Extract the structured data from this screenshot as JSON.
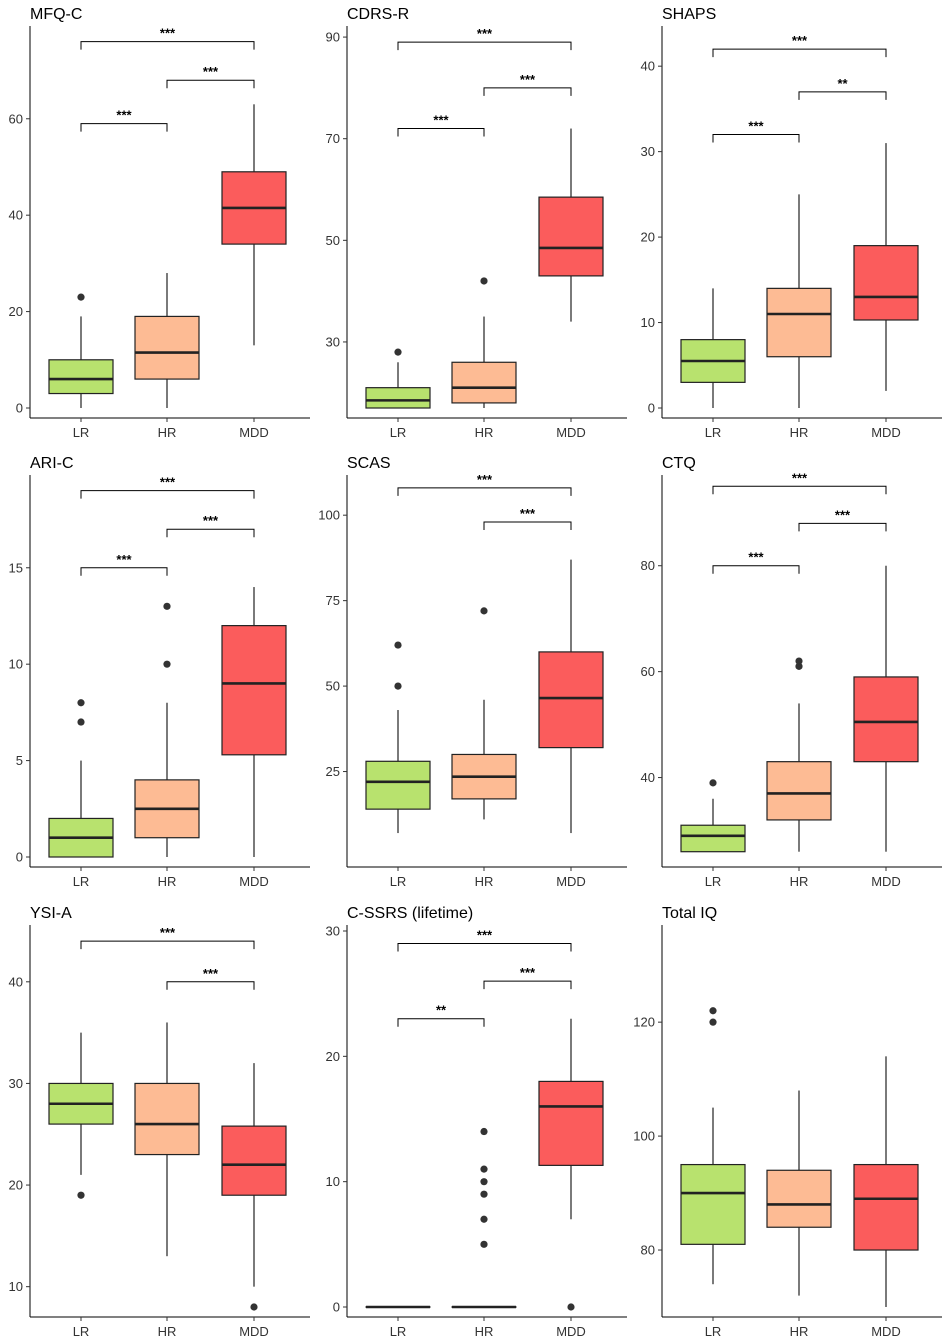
{
  "colors": {
    "LR": "#b8e26e",
    "HR": "#fdbb94",
    "MDD": "#fb5c5c",
    "outline": "#222222",
    "median": "#222222"
  },
  "chart_data": [
    {
      "type": "boxplot",
      "title": "MFQ-C",
      "categories": [
        "LR",
        "HR",
        "MDD"
      ],
      "ylim": [
        0,
        78
      ],
      "yticks": [
        0,
        20,
        40,
        60
      ],
      "boxes": [
        {
          "group": "LR",
          "min": 0,
          "q1": 3,
          "median": 6,
          "q3": 10,
          "max": 19,
          "outliers": [
            23
          ]
        },
        {
          "group": "HR",
          "min": 0,
          "q1": 6,
          "median": 11.5,
          "q3": 19,
          "max": 28,
          "outliers": []
        },
        {
          "group": "MDD",
          "min": 13,
          "q1": 34,
          "median": 41.5,
          "q3": 49,
          "max": 63,
          "outliers": []
        }
      ],
      "comparisons": [
        {
          "from": "LR",
          "to": "HR",
          "y": 59,
          "label": "***"
        },
        {
          "from": "HR",
          "to": "MDD",
          "y": 68,
          "label": "***"
        },
        {
          "from": "LR",
          "to": "MDD",
          "y": 76,
          "label": "***"
        }
      ]
    },
    {
      "type": "boxplot",
      "title": "CDRS-R",
      "categories": [
        "LR",
        "HR",
        "MDD"
      ],
      "ylim": [
        17,
        91
      ],
      "yticks": [
        30,
        50,
        70,
        90
      ],
      "boxes": [
        {
          "group": "LR",
          "min": 17,
          "q1": 17,
          "median": 18.5,
          "q3": 21,
          "max": 26,
          "outliers": [
            28
          ]
        },
        {
          "group": "HR",
          "min": 17,
          "q1": 18,
          "median": 21,
          "q3": 26,
          "max": 35,
          "outliers": [
            42
          ]
        },
        {
          "group": "MDD",
          "min": 34,
          "q1": 43,
          "median": 48.5,
          "q3": 58.5,
          "max": 72,
          "outliers": []
        }
      ],
      "comparisons": [
        {
          "from": "LR",
          "to": "HR",
          "y": 72,
          "label": "***"
        },
        {
          "from": "HR",
          "to": "MDD",
          "y": 80,
          "label": "***"
        },
        {
          "from": "LR",
          "to": "MDD",
          "y": 89,
          "label": "***"
        }
      ]
    },
    {
      "type": "boxplot",
      "title": "SHAPS",
      "categories": [
        "LR",
        "HR",
        "MDD"
      ],
      "ylim": [
        0,
        44
      ],
      "yticks": [
        0,
        10,
        20,
        30,
        40
      ],
      "boxes": [
        {
          "group": "LR",
          "min": 0,
          "q1": 3,
          "median": 5.5,
          "q3": 8,
          "max": 14,
          "outliers": []
        },
        {
          "group": "HR",
          "min": 0,
          "q1": 6,
          "median": 11,
          "q3": 14,
          "max": 25,
          "outliers": []
        },
        {
          "group": "MDD",
          "min": 2,
          "q1": 10.3,
          "median": 13,
          "q3": 19,
          "max": 31,
          "outliers": []
        }
      ],
      "comparisons": [
        {
          "from": "LR",
          "to": "HR",
          "y": 32,
          "label": "***"
        },
        {
          "from": "HR",
          "to": "MDD",
          "y": 37,
          "label": "**"
        },
        {
          "from": "LR",
          "to": "MDD",
          "y": 42,
          "label": "***"
        }
      ]
    },
    {
      "type": "boxplot",
      "title": "ARI-C",
      "categories": [
        "LR",
        "HR",
        "MDD"
      ],
      "ylim": [
        0,
        19.5
      ],
      "yticks": [
        0,
        5,
        10,
        15
      ],
      "boxes": [
        {
          "group": "LR",
          "min": 0,
          "q1": 0,
          "median": 1,
          "q3": 2,
          "max": 5,
          "outliers": [
            7,
            8
          ]
        },
        {
          "group": "HR",
          "min": 0,
          "q1": 1,
          "median": 2.5,
          "q3": 4,
          "max": 8,
          "outliers": [
            10,
            13
          ]
        },
        {
          "group": "MDD",
          "min": 0,
          "q1": 5.3,
          "median": 9,
          "q3": 12,
          "max": 14,
          "outliers": []
        }
      ],
      "comparisons": [
        {
          "from": "LR",
          "to": "HR",
          "y": 15,
          "label": "***"
        },
        {
          "from": "HR",
          "to": "MDD",
          "y": 17,
          "label": "***"
        },
        {
          "from": "LR",
          "to": "MDD",
          "y": 19,
          "label": "***"
        }
      ]
    },
    {
      "type": "boxplot",
      "title": "SCAS",
      "categories": [
        "LR",
        "HR",
        "MDD"
      ],
      "ylim": [
        0,
        110
      ],
      "yticks": [
        25,
        50,
        75,
        100
      ],
      "boxes": [
        {
          "group": "LR",
          "min": 7,
          "q1": 14,
          "median": 22,
          "q3": 28,
          "max": 43,
          "outliers": [
            50,
            62
          ]
        },
        {
          "group": "HR",
          "min": 11,
          "q1": 17,
          "median": 23.5,
          "q3": 30,
          "max": 46,
          "outliers": [
            72
          ]
        },
        {
          "group": "MDD",
          "min": 7,
          "q1": 32,
          "median": 46.5,
          "q3": 60,
          "max": 87,
          "outliers": []
        }
      ],
      "comparisons": [
        {
          "from": "HR",
          "to": "MDD",
          "y": 98,
          "label": "***"
        },
        {
          "from": "LR",
          "to": "MDD",
          "y": 108,
          "label": "***"
        }
      ]
    },
    {
      "type": "boxplot",
      "title": "CTQ",
      "categories": [
        "LR",
        "HR",
        "MDD"
      ],
      "ylim": [
        25,
        96
      ],
      "yticks": [
        40,
        60,
        80
      ],
      "boxes": [
        {
          "group": "LR",
          "min": 26,
          "q1": 26,
          "median": 29,
          "q3": 31,
          "max": 36,
          "outliers": [
            39
          ]
        },
        {
          "group": "HR",
          "min": 26,
          "q1": 32,
          "median": 37,
          "q3": 43,
          "max": 54,
          "outliers": [
            61,
            62
          ]
        },
        {
          "group": "MDD",
          "min": 26,
          "q1": 43,
          "median": 50.5,
          "q3": 59,
          "max": 80,
          "outliers": []
        }
      ],
      "comparisons": [
        {
          "from": "LR",
          "to": "HR",
          "y": 80,
          "label": "***"
        },
        {
          "from": "HR",
          "to": "MDD",
          "y": 88,
          "label": "***"
        },
        {
          "from": "LR",
          "to": "MDD",
          "y": 95,
          "label": "***"
        }
      ]
    },
    {
      "type": "boxplot",
      "title": "YSI-A",
      "categories": [
        "LR",
        "HR",
        "MDD"
      ],
      "ylim": [
        8,
        45
      ],
      "yticks": [
        10,
        20,
        30,
        40
      ],
      "boxes": [
        {
          "group": "LR",
          "min": 21,
          "q1": 26,
          "median": 28,
          "q3": 30,
          "max": 35,
          "outliers": [
            19
          ]
        },
        {
          "group": "HR",
          "min": 13,
          "q1": 23,
          "median": 26,
          "q3": 30,
          "max": 36,
          "outliers": []
        },
        {
          "group": "MDD",
          "min": 10,
          "q1": 19,
          "median": 22,
          "q3": 25.8,
          "max": 32,
          "outliers": [
            8
          ]
        }
      ],
      "comparisons": [
        {
          "from": "HR",
          "to": "MDD",
          "y": 40,
          "label": "***"
        },
        {
          "from": "LR",
          "to": "MDD",
          "y": 44,
          "label": "***"
        }
      ]
    },
    {
      "type": "boxplot",
      "title": "C-SSRS (lifetime)",
      "categories": [
        "LR",
        "HR",
        "MDD"
      ],
      "ylim": [
        0,
        30
      ],
      "yticks": [
        0,
        10,
        20,
        30
      ],
      "boxes": [
        {
          "group": "LR",
          "min": 0,
          "q1": 0,
          "median": 0,
          "q3": 0,
          "max": 0,
          "outliers": []
        },
        {
          "group": "HR",
          "min": 0,
          "q1": 0,
          "median": 0,
          "q3": 0,
          "max": 0,
          "outliers": [
            5,
            7,
            9,
            10,
            11,
            14
          ]
        },
        {
          "group": "MDD",
          "min": 7,
          "q1": 11.3,
          "median": 16,
          "q3": 18,
          "max": 23,
          "outliers": [
            0
          ]
        }
      ],
      "comparisons": [
        {
          "from": "LR",
          "to": "HR",
          "y": 23,
          "label": "**"
        },
        {
          "from": "HR",
          "to": "MDD",
          "y": 26,
          "label": "***"
        },
        {
          "from": "LR",
          "to": "MDD",
          "y": 29,
          "label": "***"
        }
      ]
    },
    {
      "type": "boxplot",
      "title": "Total IQ",
      "categories": [
        "LR",
        "HR",
        "MDD"
      ],
      "ylim": [
        70,
        136
      ],
      "yticks": [
        80,
        100,
        120
      ],
      "boxes": [
        {
          "group": "LR",
          "min": 74,
          "q1": 81,
          "median": 90,
          "q3": 95,
          "max": 105,
          "outliers": [
            120,
            122
          ]
        },
        {
          "group": "HR",
          "min": 72,
          "q1": 84,
          "median": 88,
          "q3": 94,
          "max": 108,
          "outliers": []
        },
        {
          "group": "MDD",
          "min": 70,
          "q1": 80,
          "median": 89,
          "q3": 95,
          "max": 114,
          "outliers": []
        }
      ],
      "comparisons": []
    }
  ]
}
